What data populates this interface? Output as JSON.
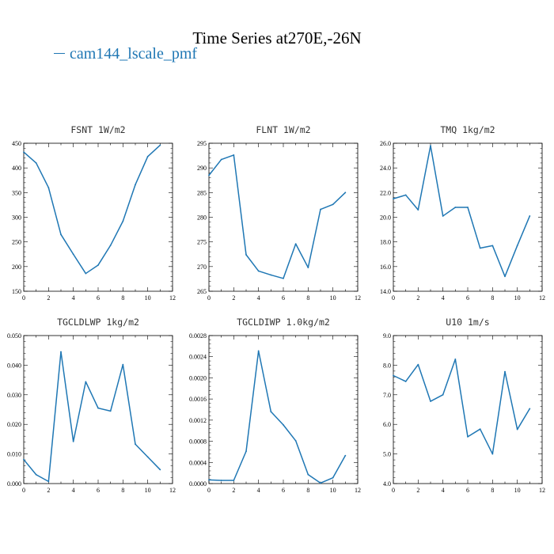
{
  "figure": {
    "title": "Time Series at270E,-26N",
    "legend": "cam144_lscale_pmf",
    "line_color": "#1f77b4"
  },
  "chart_data": [
    {
      "type": "line",
      "title": "FSNT   1W/m2",
      "x": [
        0,
        1,
        2,
        3,
        4,
        5,
        6,
        7,
        8,
        9,
        10,
        11
      ],
      "series": [
        {
          "name": "cam144_lscale_pmf",
          "values": [
            432,
            410,
            360,
            265,
            225,
            186,
            203,
            243,
            292,
            366,
            423,
            446
          ]
        }
      ],
      "xlim": [
        0,
        12
      ],
      "ylim": [
        150,
        450
      ],
      "xticks": [
        "0",
        "2",
        "4",
        "6",
        "8",
        "10",
        "12"
      ],
      "yticks": [
        "150",
        "200",
        "250",
        "300",
        "350",
        "400",
        "450"
      ]
    },
    {
      "type": "line",
      "title": "FLNT   1W/m2",
      "x": [
        0,
        1,
        2,
        3,
        4,
        5,
        6,
        7,
        8,
        9,
        10,
        11
      ],
      "series": [
        {
          "name": "cam144_lscale_pmf",
          "values": [
            288.5,
            291.7,
            292.6,
            272.4,
            269.1,
            268.3,
            267.6,
            274.6,
            269.8,
            281.6,
            282.6,
            285.0
          ]
        }
      ],
      "xlim": [
        0,
        12
      ],
      "ylim": [
        265,
        295
      ],
      "xticks": [
        "0",
        "2",
        "4",
        "6",
        "8",
        "10",
        "12"
      ],
      "yticks": [
        "265",
        "270",
        "275",
        "280",
        "285",
        "290",
        "295"
      ]
    },
    {
      "type": "line",
      "title": "TMQ   1kg/m2",
      "x": [
        0,
        1,
        2,
        3,
        4,
        5,
        6,
        7,
        8,
        9,
        10,
        11
      ],
      "series": [
        {
          "name": "cam144_lscale_pmf",
          "values": [
            21.5,
            21.8,
            20.6,
            25.8,
            20.1,
            20.8,
            20.8,
            17.5,
            17.7,
            15.2,
            17.7,
            20.1
          ]
        }
      ],
      "xlim": [
        0,
        12
      ],
      "ylim": [
        14.0,
        26.0
      ],
      "xticks": [
        "0",
        "2",
        "4",
        "6",
        "8",
        "10",
        "12"
      ],
      "yticks": [
        "14.0",
        "16.0",
        "18.0",
        "20.0",
        "22.0",
        "24.0",
        "26.0"
      ]
    },
    {
      "type": "line",
      "title": "TGCLDLWP   1kg/m2",
      "x": [
        0,
        1,
        2,
        3,
        4,
        5,
        6,
        7,
        8,
        9,
        10,
        11
      ],
      "series": [
        {
          "name": "cam144_lscale_pmf",
          "values": [
            0.0081,
            0.003,
            0.0007,
            0.0445,
            0.0142,
            0.0344,
            0.0255,
            0.0245,
            0.0402,
            0.0133,
            0.009,
            0.0047
          ]
        }
      ],
      "xlim": [
        0,
        12
      ],
      "ylim": [
        0,
        0.05
      ],
      "xticks": [
        "0",
        "2",
        "4",
        "6",
        "8",
        "10",
        "12"
      ],
      "yticks": [
        "0.000",
        "0.010",
        "0.020",
        "0.030",
        "0.040",
        "0.050"
      ]
    },
    {
      "type": "line",
      "title": "TGCLDIWP   1.0kg/m2",
      "x": [
        0,
        1,
        2,
        3,
        4,
        5,
        6,
        7,
        8,
        9,
        10,
        11
      ],
      "series": [
        {
          "name": "cam144_lscale_pmf",
          "values": [
            7e-05,
            6e-05,
            6e-05,
            0.00061,
            0.00251,
            0.00136,
            0.00111,
            0.00081,
            0.00017,
            1e-05,
            0.00011,
            0.00053
          ]
        }
      ],
      "xlim": [
        0,
        12
      ],
      "ylim": [
        0,
        0.0028
      ],
      "xticks": [
        "0",
        "2",
        "4",
        "6",
        "8",
        "10",
        "12"
      ],
      "yticks": [
        "0.0000",
        "0.0004",
        "0.0008",
        "0.0012",
        "0.0016",
        "0.0020",
        "0.0024",
        "0.0028"
      ]
    },
    {
      "type": "line",
      "title": "U10   1m/s",
      "x": [
        0,
        1,
        2,
        3,
        4,
        5,
        6,
        7,
        8,
        9,
        10,
        11
      ],
      "series": [
        {
          "name": "cam144_lscale_pmf",
          "values": [
            7.65,
            7.45,
            8.02,
            6.78,
            7.0,
            8.2,
            5.58,
            5.84,
            5.0,
            7.78,
            5.83,
            6.53
          ]
        }
      ],
      "xlim": [
        0,
        12
      ],
      "ylim": [
        4.0,
        9.0
      ],
      "xticks": [
        "0",
        "2",
        "4",
        "6",
        "8",
        "10",
        "12"
      ],
      "yticks": [
        "4.0",
        "5.0",
        "6.0",
        "7.0",
        "8.0",
        "9.0"
      ]
    }
  ]
}
